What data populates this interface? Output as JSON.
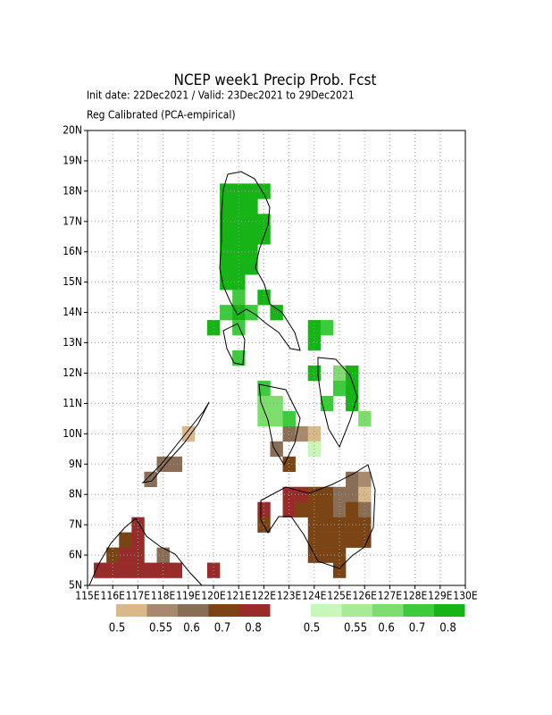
{
  "header": {
    "title": "NCEP week1 Precip Prob. Fcst",
    "subtitle": "Init date: 22Dec2021 / Valid: 23Dec2021 to 29Dec2021",
    "note": "Reg Calibrated (PCA-empirical)"
  },
  "map": {
    "xlim": [
      115,
      130
    ],
    "ylim": [
      5,
      20
    ],
    "grid": true,
    "xticks": [
      {
        "value": 115,
        "label": "115E"
      },
      {
        "value": 116,
        "label": "116E"
      },
      {
        "value": 117,
        "label": "117E"
      },
      {
        "value": 118,
        "label": "118E"
      },
      {
        "value": 119,
        "label": "119E"
      },
      {
        "value": 120,
        "label": "120E"
      },
      {
        "value": 121,
        "label": "121E"
      },
      {
        "value": 122,
        "label": "122E"
      },
      {
        "value": 123,
        "label": "123E"
      },
      {
        "value": 124,
        "label": "124E"
      },
      {
        "value": 125,
        "label": "125E"
      },
      {
        "value": 126,
        "label": "126E"
      },
      {
        "value": 127,
        "label": "127E"
      },
      {
        "value": 128,
        "label": "128E"
      },
      {
        "value": 129,
        "label": "129E"
      },
      {
        "value": 130,
        "label": "130E"
      }
    ],
    "yticks": [
      {
        "value": 5,
        "label": "5N"
      },
      {
        "value": 6,
        "label": "6N"
      },
      {
        "value": 7,
        "label": "7N"
      },
      {
        "value": 8,
        "label": "8N"
      },
      {
        "value": 9,
        "label": "9N"
      },
      {
        "value": 10,
        "label": "10N"
      },
      {
        "value": 11,
        "label": "11N"
      },
      {
        "value": 12,
        "label": "12N"
      },
      {
        "value": 13,
        "label": "13N"
      },
      {
        "value": 14,
        "label": "14N"
      },
      {
        "value": 15,
        "label": "15N"
      },
      {
        "value": 16,
        "label": "16N"
      },
      {
        "value": 17,
        "label": "17N"
      },
      {
        "value": 18,
        "label": "18N"
      },
      {
        "value": 19,
        "label": "19N"
      },
      {
        "value": 20,
        "label": "20N"
      }
    ],
    "below": {
      "levels": [
        0.5,
        0.55,
        0.6,
        0.7,
        0.8
      ],
      "colors": [
        "#d9b98a",
        "#a8896e",
        "#8a6d55",
        "#7b4414",
        "#992b2b"
      ],
      "cells": [
        [
          119,
          10,
          0.5
        ],
        [
          118.5,
          9,
          0.6
        ],
        [
          118,
          9,
          0.6
        ],
        [
          117.5,
          8.5,
          0.6
        ],
        [
          122.5,
          9.5,
          0.6
        ],
        [
          123,
          10,
          0.6
        ],
        [
          123.5,
          10,
          0.55
        ],
        [
          124,
          10,
          0.5
        ],
        [
          123,
          9,
          0.7
        ],
        [
          123,
          8,
          0.8
        ],
        [
          123.5,
          8,
          0.8
        ],
        [
          123,
          7.5,
          0.8
        ],
        [
          124,
          8,
          0.7
        ],
        [
          124.5,
          8,
          0.7
        ],
        [
          125,
          8,
          0.6
        ],
        [
          125.5,
          8,
          0.6
        ],
        [
          125.5,
          8.5,
          0.6
        ],
        [
          126,
          8.5,
          0.55
        ],
        [
          126,
          8,
          0.5
        ],
        [
          123.5,
          7.5,
          0.7
        ],
        [
          124,
          7.5,
          0.7
        ],
        [
          124.5,
          7.5,
          0.7
        ],
        [
          125,
          7.5,
          0.6
        ],
        [
          125.5,
          7.5,
          0.7
        ],
        [
          126,
          7.5,
          0.6
        ],
        [
          124,
          7,
          0.7
        ],
        [
          124.5,
          7,
          0.7
        ],
        [
          125,
          7,
          0.7
        ],
        [
          125.5,
          7,
          0.7
        ],
        [
          126,
          7,
          0.7
        ],
        [
          124,
          6.5,
          0.7
        ],
        [
          124.5,
          6.5,
          0.7
        ],
        [
          125,
          6.5,
          0.7
        ],
        [
          125.5,
          6.5,
          0.7
        ],
        [
          126,
          6.5,
          0.7
        ],
        [
          124,
          6,
          0.7
        ],
        [
          124.5,
          6,
          0.7
        ],
        [
          125,
          6,
          0.7
        ],
        [
          125,
          5.5,
          0.7
        ],
        [
          122,
          7.5,
          0.8
        ],
        [
          122,
          7,
          0.7
        ],
        [
          116.5,
          6.5,
          0.7
        ],
        [
          117,
          7,
          0.8
        ],
        [
          117,
          6.5,
          0.8
        ],
        [
          116,
          6,
          0.7
        ],
        [
          116.5,
          6,
          0.8
        ],
        [
          117,
          6,
          0.8
        ],
        [
          118,
          6,
          0.6
        ],
        [
          115.5,
          5.5,
          0.8
        ],
        [
          116,
          5.5,
          0.8
        ],
        [
          116.5,
          5.5,
          0.8
        ],
        [
          117,
          5.5,
          0.8
        ],
        [
          117.5,
          5.5,
          0.8
        ],
        [
          118,
          5.5,
          0.8
        ],
        [
          118.5,
          5.5,
          0.8
        ],
        [
          120,
          5.5,
          0.8
        ]
      ]
    },
    "above": {
      "levels": [
        0.5,
        0.55,
        0.6,
        0.7,
        0.8
      ],
      "colors": [
        "#c8f7b8",
        "#a6ec96",
        "#7ddd6e",
        "#3dca3d",
        "#16b416"
      ],
      "cells": [
        [
          120.5,
          18,
          0.8
        ],
        [
          121,
          18,
          0.8
        ],
        [
          121.5,
          18,
          0.8
        ],
        [
          122,
          18,
          0.8
        ],
        [
          120.5,
          17.5,
          0.8
        ],
        [
          121,
          17.5,
          0.8
        ],
        [
          121.5,
          17.5,
          0.8
        ],
        [
          120.5,
          17,
          0.8
        ],
        [
          121,
          17,
          0.8
        ],
        [
          121.5,
          17,
          0.8
        ],
        [
          122,
          17,
          0.8
        ],
        [
          120.5,
          16.5,
          0.8
        ],
        [
          121,
          16.5,
          0.8
        ],
        [
          121.5,
          16.5,
          0.8
        ],
        [
          122,
          16.5,
          0.8
        ],
        [
          120.5,
          16,
          0.8
        ],
        [
          121,
          16,
          0.8
        ],
        [
          121.5,
          16,
          0.8
        ],
        [
          120.5,
          15.5,
          0.8
        ],
        [
          121,
          15.5,
          0.8
        ],
        [
          121.5,
          15.5,
          0.8
        ],
        [
          120.5,
          15,
          0.8
        ],
        [
          121,
          15,
          0.8
        ],
        [
          121,
          14.5,
          0.7
        ],
        [
          122,
          14.5,
          0.8
        ],
        [
          120.5,
          14,
          0.7
        ],
        [
          121,
          14,
          0.8
        ],
        [
          121.5,
          14,
          0.7
        ],
        [
          122.5,
          14,
          0.8
        ],
        [
          120,
          13.5,
          0.8
        ],
        [
          121,
          13.5,
          0.7
        ],
        [
          124,
          13.5,
          0.8
        ],
        [
          124.5,
          13.5,
          0.7
        ],
        [
          124,
          13,
          0.8
        ],
        [
          121,
          12.5,
          0.7
        ],
        [
          124,
          12,
          0.8
        ],
        [
          125,
          12,
          0.6
        ],
        [
          125.5,
          12,
          0.8
        ],
        [
          122,
          11.5,
          0.7
        ],
        [
          125,
          11.5,
          0.7
        ],
        [
          125.5,
          11.5,
          0.8
        ],
        [
          122,
          11,
          0.6
        ],
        [
          122.5,
          11,
          0.6
        ],
        [
          124.5,
          11,
          0.7
        ],
        [
          125.5,
          11,
          0.8
        ],
        [
          122,
          10.5,
          0.6
        ],
        [
          122.5,
          10.5,
          0.6
        ],
        [
          123,
          10.5,
          0.7
        ],
        [
          126,
          10.5,
          0.6
        ],
        [
          124,
          9.5,
          0.5
        ]
      ]
    }
  },
  "legend": {
    "below_labels": [
      "0.5",
      "0.55",
      "0.6",
      "0.7",
      "0.8"
    ],
    "above_labels": [
      "0.5",
      "0.55",
      "0.6",
      "0.7",
      "0.8"
    ]
  }
}
